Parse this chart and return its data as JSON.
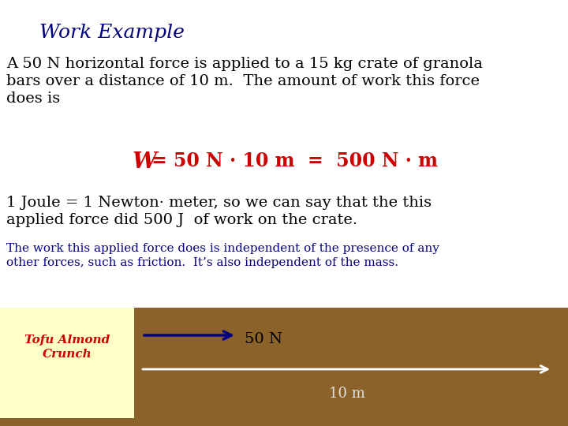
{
  "bg_color": "#ffffff",
  "title": "Work Example",
  "title_color": "#000080",
  "title_fontsize": 18,
  "title_family": "serif",
  "para1_line1": "A 50 N horizontal force is applied to a 15 kg crate of granola",
  "para1_line2": "bars over a distance of 10 m.  The amount of work this force",
  "para1_line3": "does is",
  "para1_color": "#000000",
  "para1_fontsize": 14,
  "formula_W": "W",
  "formula_rest": "= 50 N · 10 m  =  500 N · m",
  "formula_color": "#cc0000",
  "formula_fontsize": 17,
  "para2_line1": "1 Joule = 1 Newton· meter, so we can say that the this",
  "para2_line2": "applied force did 500 J  of work on the crate.",
  "para2_color": "#000000",
  "para2_fontsize": 14,
  "para3_line1": "The work this applied force does is independent of the presence of any",
  "para3_line2": "other forces, such as friction.  It’s also independent of the mass.",
  "para3_color": "#000080",
  "para3_fontsize": 11,
  "brown_bg_color": "#8B6229",
  "crate_bg_color": "#FFFFC8",
  "crate_text": "Tofu Almond\nCrunch",
  "crate_text_color": "#cc0000",
  "crate_fontsize": 11,
  "force_label": "50 N",
  "force_label_color": "#000000",
  "force_label_fontsize": 14,
  "distance_label": "10 m",
  "distance_label_color": "#e0e0e0",
  "distance_label_fontsize": 13,
  "arrow_color": "#000080",
  "dist_arrow_color": "#ffffff"
}
